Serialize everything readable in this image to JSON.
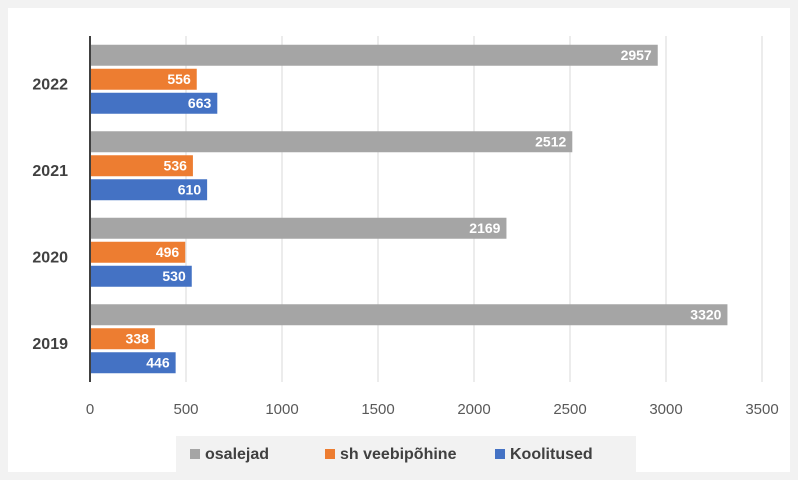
{
  "chart_data": {
    "type": "bar",
    "orientation": "horizontal",
    "categories": [
      "2019",
      "2020",
      "2021",
      "2022"
    ],
    "series": [
      {
        "name": "osalejad",
        "color": "#a5a5a5",
        "values": [
          3320,
          2169,
          2512,
          2957
        ]
      },
      {
        "name": "sh veebipõhine",
        "color": "#ed7d31",
        "values": [
          338,
          496,
          536,
          556
        ]
      },
      {
        "name": "Koolitused",
        "color": "#4472c4",
        "values": [
          446,
          530,
          610,
          663
        ]
      }
    ],
    "xlim": [
      0,
      3500
    ],
    "xticks": [
      0,
      500,
      1000,
      1500,
      2000,
      2500,
      3000,
      3500
    ],
    "grid": true,
    "legend": "bottom"
  }
}
